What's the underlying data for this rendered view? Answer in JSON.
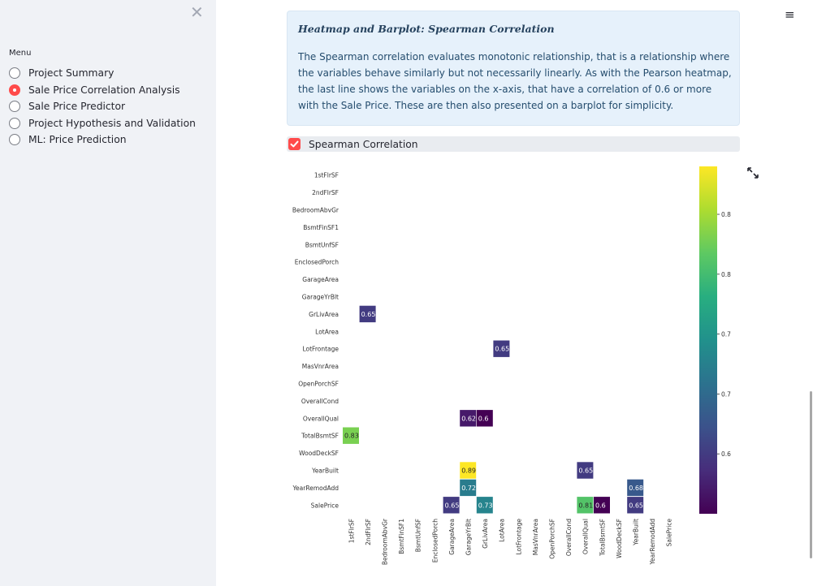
{
  "sidebar": {
    "close_glyph": "✕",
    "menu_label": "Menu",
    "items": [
      {
        "label": "Project Summary",
        "selected": false
      },
      {
        "label": "Sale Price Correlation Analysis",
        "selected": true
      },
      {
        "label": "Sale Price Predictor",
        "selected": false
      },
      {
        "label": "Project Hypothesis and Validation",
        "selected": false
      },
      {
        "label": "ML: Price Prediction",
        "selected": false
      }
    ]
  },
  "header": {
    "menu_icon": "hamburger-icon",
    "menu_glyph": "≡"
  },
  "info_box": {
    "title": "Heatmap and Barplot: Spearman Correlation",
    "body": "The Spearman correlation evaluates monotonic relationship, that is a relationship where the variables behave similarly but not necessarily linearly. As with the Pearson heatmap, the last line shows the variables on the x-axis, that have a correlation of 0.6 or more with the Sale Price. These are then also presented on a barplot for simplicity."
  },
  "checkbox": {
    "label": "Spearman Correlation",
    "checked": true
  },
  "colors": {
    "accent": "#ff4b4b",
    "sidebar_bg": "#f0f2f6",
    "info_bg": "#e6f1fb"
  },
  "chart_data": {
    "type": "heatmap",
    "title": "",
    "colormap": "viridis",
    "colorbar_range": [
      0.6,
      0.89
    ],
    "colorbar_ticks": [
      0.65,
      0.7,
      0.75,
      0.8,
      0.85
    ],
    "colorbar_tick_labels": [
      "0.65",
      "0.70",
      "0.75",
      "0.80",
      "0.85"
    ],
    "rows": [
      "1stFlrSF",
      "2ndFlrSF",
      "BedroomAbvGr",
      "BsmtFinSF1",
      "BsmtUnfSF",
      "EnclosedPorch",
      "GarageArea",
      "GarageYrBlt",
      "GrLivArea",
      "LotArea",
      "LotFrontage",
      "MasVnrArea",
      "OpenPorchSF",
      "OverallCond",
      "OverallQual",
      "TotalBsmtSF",
      "WoodDeckSF",
      "YearBuilt",
      "YearRemodAdd",
      "SalePrice"
    ],
    "columns": [
      "1stFlrSF",
      "2ndFlrSF",
      "BedroomAbvGr",
      "BsmtFinSF1",
      "BsmtUnfSF",
      "EnclosedPorch",
      "GarageArea",
      "GarageYrBlt",
      "GrLivArea",
      "LotArea",
      "LotFrontage",
      "MasVnrArea",
      "OpenPorchSF",
      "OverallCond",
      "OverallQual",
      "TotalBsmtSF",
      "WoodDeckSF",
      "YearBuilt",
      "YearRemodAdd",
      "SalePrice"
    ],
    "cells": [
      {
        "row": "GrLivArea",
        "col": "2ndFlrSF",
        "value": 0.65,
        "label": "0.65"
      },
      {
        "row": "LotFrontage",
        "col": "LotArea",
        "value": 0.65,
        "label": "0.65"
      },
      {
        "row": "OverallQual",
        "col": "GarageYrBlt",
        "value": 0.62,
        "label": "0.62"
      },
      {
        "row": "OverallQual",
        "col": "GrLivArea",
        "value": 0.6,
        "label": "0.6"
      },
      {
        "row": "TotalBsmtSF",
        "col": "1stFlrSF",
        "value": 0.83,
        "label": "0.83"
      },
      {
        "row": "YearBuilt",
        "col": "GarageYrBlt",
        "value": 0.89,
        "label": "0.89"
      },
      {
        "row": "YearBuilt",
        "col": "OverallQual",
        "value": 0.65,
        "label": "0.65"
      },
      {
        "row": "YearRemodAdd",
        "col": "GarageYrBlt",
        "value": 0.72,
        "label": "0.72"
      },
      {
        "row": "YearRemodAdd",
        "col": "YearBuilt",
        "value": 0.68,
        "label": "0.68"
      },
      {
        "row": "SalePrice",
        "col": "GarageArea",
        "value": 0.65,
        "label": "0.65"
      },
      {
        "row": "SalePrice",
        "col": "GrLivArea",
        "value": 0.73,
        "label": "0.73"
      },
      {
        "row": "SalePrice",
        "col": "OverallQual",
        "value": 0.81,
        "label": "0.81"
      },
      {
        "row": "SalePrice",
        "col": "TotalBsmtSF",
        "value": 0.6,
        "label": "0.6"
      },
      {
        "row": "SalePrice",
        "col": "YearBuilt",
        "value": 0.65,
        "label": "0.65"
      }
    ]
  }
}
